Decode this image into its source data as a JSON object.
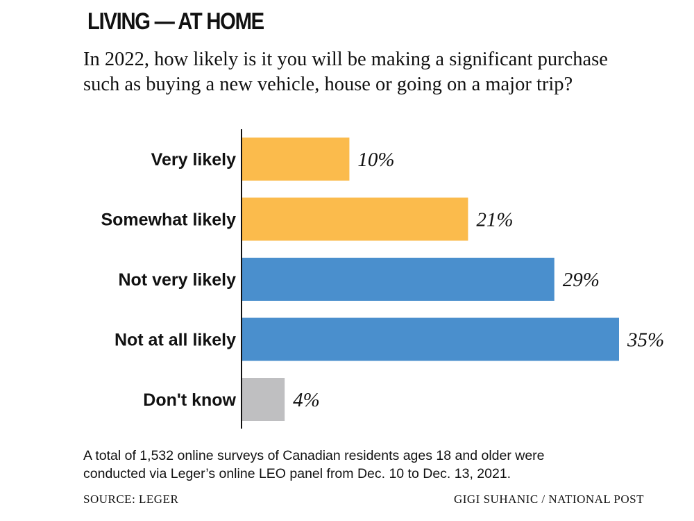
{
  "header": {
    "title": "LIVING — AT HOME",
    "question": "In 2022, how likely is it you will be making a significant purchase such as buying a new vehicle, house or going on a major trip?"
  },
  "chart_data": {
    "type": "bar",
    "orientation": "horizontal",
    "title": "In 2022, how likely is it you will be making a significant purchase such as buying a new vehicle, house or going on a major trip?",
    "categories": [
      "Very likely",
      "Somewhat likely",
      "Not very likely",
      "Not at all likely",
      "Don't know"
    ],
    "values": [
      10,
      21,
      29,
      35,
      4
    ],
    "value_labels": [
      "10%",
      "21%",
      "29%",
      "35%",
      "4%"
    ],
    "bar_colors": [
      "#fbbb4c",
      "#fbbb4c",
      "#4a8fcd",
      "#4a8fcd",
      "#bfbfc1"
    ],
    "xlim": [
      0,
      35
    ],
    "xlabel": "",
    "ylabel": "",
    "grid": false,
    "legend": "none"
  },
  "footer": {
    "note": "A total of 1,532 online surveys of Canadian residents ages 18 and older were conducted via Leger’s online LEO panel from Dec. 10 to Dec. 13, 2021.",
    "source": "SOURCE: LEGER",
    "credit": "GIGI SUHANIC / NATIONAL POST"
  },
  "colors": {
    "text": "#111111",
    "axis": "#111111",
    "inside_label": "#ffffff"
  }
}
